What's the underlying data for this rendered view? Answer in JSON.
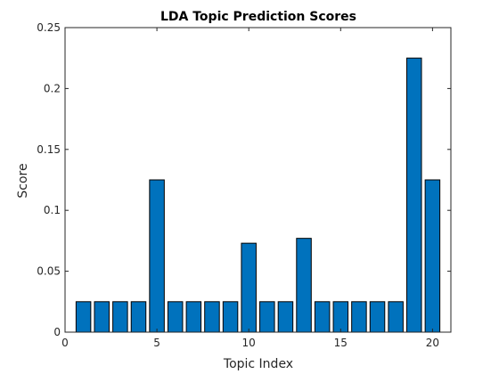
{
  "chart_data": {
    "type": "bar",
    "title": "LDA Topic Prediction Scores",
    "xlabel": "Topic Index",
    "ylabel": "Score",
    "x": [
      1,
      2,
      3,
      4,
      5,
      6,
      7,
      8,
      9,
      10,
      11,
      12,
      13,
      14,
      15,
      16,
      17,
      18,
      19,
      20
    ],
    "values": [
      0.025,
      0.025,
      0.025,
      0.025,
      0.125,
      0.025,
      0.025,
      0.025,
      0.025,
      0.073,
      0.025,
      0.025,
      0.077,
      0.025,
      0.025,
      0.025,
      0.025,
      0.025,
      0.225,
      0.125
    ],
    "xlim": [
      0,
      21
    ],
    "ylim": [
      0,
      0.25
    ],
    "xticks": [
      0,
      5,
      10,
      15,
      20
    ],
    "xtick_labels": [
      "0",
      "5",
      "10",
      "15",
      "20"
    ],
    "yticks": [
      0,
      0.05,
      0.1,
      0.15,
      0.2,
      0.25
    ],
    "ytick_labels": [
      "0",
      "0.05",
      "0.1",
      "0.15",
      "0.2",
      "0.25"
    ],
    "bar_color": "#0072BD",
    "grid": false
  }
}
